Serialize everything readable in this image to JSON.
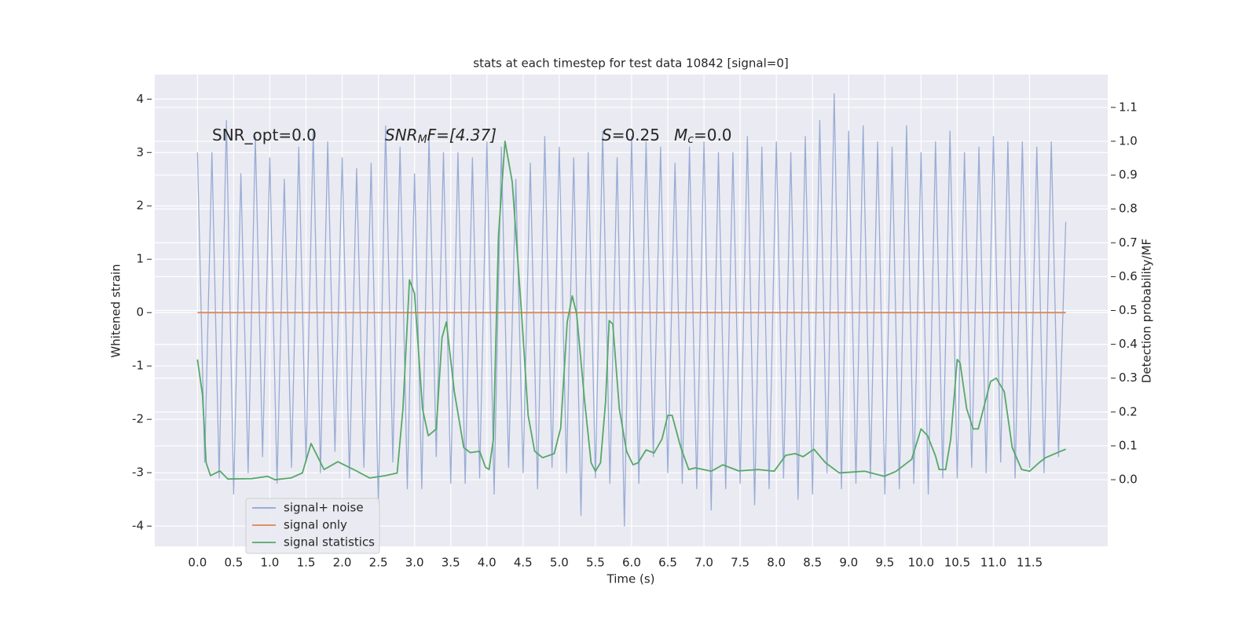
{
  "chart_data": {
    "type": "line",
    "title": "stats at each timestep for test data 10842 [signal=0]",
    "x_label": "Time (s)",
    "y_label": "Whitened strain",
    "y2_label": "Detection probability/MF",
    "grid": true,
    "legend": "lower left",
    "annotations": [
      {
        "main": "SNR_opt=0.0"
      },
      {
        "main": "SNR",
        "sub": "M",
        "rest": "F=[4.37]"
      },
      {
        "main": "S",
        "rest": "=0.25"
      },
      {
        "main": "M",
        "sub": "c",
        "rest": "=0.0"
      }
    ],
    "xlim": [
      -0.59,
      12.58
    ],
    "ylim": [
      -4.38,
      4.46
    ],
    "y2lim": [
      -0.197,
      1.197
    ],
    "xticks": [
      {
        "value": 0,
        "label": "0.0"
      },
      0.5,
      {
        "value": 1,
        "label": "1.0"
      },
      1.5,
      {
        "value": 2,
        "label": "2.0"
      },
      2.5,
      {
        "value": 3,
        "label": "3.0"
      },
      3.5,
      {
        "value": 4,
        "label": "4.0"
      },
      4.5,
      {
        "value": 5,
        "label": "5.0"
      },
      5.5,
      {
        "value": 6,
        "label": "6.0"
      },
      6.5,
      {
        "value": 7,
        "label": "7.0"
      },
      7.5,
      {
        "value": 8,
        "label": "8.0"
      },
      8.5,
      {
        "value": 9,
        "label": "9.0"
      },
      9.5,
      {
        "value": 10,
        "label": "10.0"
      },
      10.5,
      {
        "value": 11,
        "label": "11.0"
      },
      11.5
    ],
    "yticks": [
      -4,
      -3,
      -2,
      -1,
      0,
      1,
      2,
      3,
      4
    ],
    "y2ticks": [
      {
        "value": 0,
        "label": "0.0"
      },
      0.1,
      0.2,
      0.3,
      0.4,
      0.5,
      0.6,
      0.7,
      0.8,
      0.9,
      {
        "value": 1,
        "label": "1.0"
      },
      1.1
    ],
    "series": [
      {
        "name": "signal+ noise",
        "color": "#8fa5d2",
        "x": [
          0,
          0.1,
          0.2,
          0.3,
          0.4,
          0.5,
          0.6,
          0.7,
          0.8,
          0.9,
          1,
          1.1,
          1.2,
          1.3,
          1.4,
          1.5,
          1.6,
          1.7,
          1.8,
          1.9,
          2,
          2.1,
          2.2,
          2.3,
          2.4,
          2.5,
          2.6,
          2.7,
          2.8,
          2.9,
          3,
          3.1,
          3.2,
          3.3,
          3.4,
          3.5,
          3.6,
          3.7,
          3.8,
          3.9,
          4,
          4.1,
          4.2,
          4.3,
          4.4,
          4.5,
          4.6,
          4.7,
          4.8,
          4.9,
          5,
          5.1,
          5.2,
          5.3,
          5.4,
          5.5,
          5.6,
          5.7,
          5.8,
          5.9,
          6,
          6.1,
          6.2,
          6.3,
          6.4,
          6.5,
          6.6,
          6.7,
          6.8,
          6.9,
          7,
          7.1,
          7.2,
          7.3,
          7.4,
          7.5,
          7.6,
          7.7,
          7.8,
          7.9,
          8,
          8.1,
          8.2,
          8.3,
          8.4,
          8.5,
          8.6,
          8.7,
          8.8,
          8.9,
          9,
          9.1,
          9.2,
          9.3,
          9.4,
          9.5,
          9.6,
          9.7,
          9.8,
          9.9,
          10,
          10.1,
          10.2,
          10.3,
          10.4,
          10.5,
          10.6,
          10.7,
          10.8,
          10.9,
          11,
          11.1,
          11.2,
          11.3,
          11.4,
          11.5,
          11.6,
          11.7,
          11.8,
          11.9,
          12
        ],
        "values": [
          3.0,
          -2.8,
          3.0,
          -3.1,
          3.6,
          -3.4,
          2.6,
          -3.0,
          3.3,
          -2.7,
          2.9,
          -3.2,
          2.5,
          -2.9,
          3.1,
          -2.8,
          3.4,
          -3.0,
          3.2,
          -2.6,
          2.9,
          -3.1,
          2.7,
          -2.9,
          2.8,
          -3.6,
          3.5,
          -2.8,
          3.1,
          -3.3,
          2.6,
          -3.3,
          3.3,
          -2.7,
          3.0,
          -3.2,
          3.0,
          -3.2,
          2.9,
          -3.1,
          3.2,
          -3.4,
          3.1,
          -2.9,
          2.5,
          -3.0,
          2.8,
          -3.3,
          3.3,
          -2.9,
          3.1,
          -3.0,
          2.9,
          -3.8,
          3.0,
          -3.1,
          3.4,
          -3.2,
          2.9,
          -4.0,
          3.3,
          -3.2,
          3.2,
          -2.7,
          3.1,
          -3.0,
          2.8,
          -3.2,
          3.1,
          -3.3,
          3.2,
          -3.7,
          3.0,
          -3.3,
          3.0,
          -3.2,
          3.3,
          -3.6,
          3.1,
          -3.3,
          3.2,
          -3.1,
          3.0,
          -3.5,
          3.3,
          -3.4,
          3.6,
          -3.0,
          4.1,
          -3.3,
          3.4,
          -3.2,
          3.5,
          -3.1,
          3.2,
          -3.4,
          3.1,
          -3.3,
          3.5,
          -3.2,
          3.0,
          -3.4,
          3.2,
          -3.1,
          3.4,
          -3.1,
          3.0,
          -2.9,
          3.1,
          -3.0,
          3.3,
          -2.8,
          3.2,
          -3.1,
          3.2,
          -2.9,
          3.1,
          -3.0,
          3.2,
          -2.7,
          1.7
        ]
      },
      {
        "name": "signal only",
        "color": "#dd8452",
        "x": [
          0,
          12
        ],
        "values": [
          0,
          0
        ]
      },
      {
        "name": "signal statistics",
        "color": "#55a868",
        "axis": "y2",
        "x": [
          0,
          0.07,
          0.12,
          0.18,
          0.31,
          0.42,
          0.75,
          0.97,
          1.07,
          1.29,
          1.45,
          1.57,
          1.75,
          1.94,
          2.16,
          2.38,
          2.6,
          2.76,
          2.84,
          2.93,
          3.0,
          3.11,
          3.19,
          3.3,
          3.38,
          3.44,
          3.55,
          3.68,
          3.77,
          3.9,
          3.98,
          4.03,
          4.09,
          4.16,
          4.25,
          4.35,
          4.48,
          4.57,
          4.66,
          4.77,
          4.93,
          5.02,
          5.11,
          5.18,
          5.24,
          5.35,
          5.44,
          5.5,
          5.57,
          5.64,
          5.69,
          5.74,
          5.83,
          5.93,
          6.02,
          6.09,
          6.2,
          6.31,
          6.42,
          6.5,
          6.56,
          6.68,
          6.79,
          6.88,
          7.1,
          7.26,
          7.48,
          7.75,
          7.97,
          8.13,
          8.26,
          8.37,
          8.52,
          8.68,
          8.87,
          9.22,
          9.49,
          9.65,
          9.87,
          10.0,
          10.09,
          10.2,
          10.25,
          10.34,
          10.41,
          10.5,
          10.54,
          10.63,
          10.72,
          10.79,
          10.96,
          11.04,
          11.15,
          11.26,
          11.39,
          11.5,
          11.63,
          11.72,
          11.93,
          12.0
        ],
        "values": [
          0.355,
          0.25,
          0.05,
          0.012,
          0.026,
          0.002,
          0.003,
          0.01,
          0.0,
          0.005,
          0.02,
          0.107,
          0.03,
          0.053,
          0.03,
          0.005,
          0.012,
          0.02,
          0.21,
          0.59,
          0.55,
          0.21,
          0.13,
          0.15,
          0.42,
          0.466,
          0.26,
          0.095,
          0.08,
          0.084,
          0.037,
          0.03,
          0.12,
          0.72,
          1.0,
          0.88,
          0.49,
          0.19,
          0.084,
          0.065,
          0.077,
          0.153,
          0.466,
          0.543,
          0.49,
          0.234,
          0.05,
          0.025,
          0.05,
          0.23,
          0.47,
          0.46,
          0.21,
          0.084,
          0.044,
          0.05,
          0.088,
          0.079,
          0.12,
          0.19,
          0.19,
          0.095,
          0.03,
          0.035,
          0.025,
          0.044,
          0.026,
          0.03,
          0.025,
          0.072,
          0.077,
          0.068,
          0.09,
          0.05,
          0.02,
          0.025,
          0.01,
          0.024,
          0.06,
          0.15,
          0.13,
          0.07,
          0.03,
          0.03,
          0.12,
          0.355,
          0.345,
          0.21,
          0.15,
          0.15,
          0.29,
          0.3,
          0.26,
          0.095,
          0.03,
          0.025,
          0.05,
          0.065,
          0.084,
          0.09
        ]
      }
    ]
  }
}
